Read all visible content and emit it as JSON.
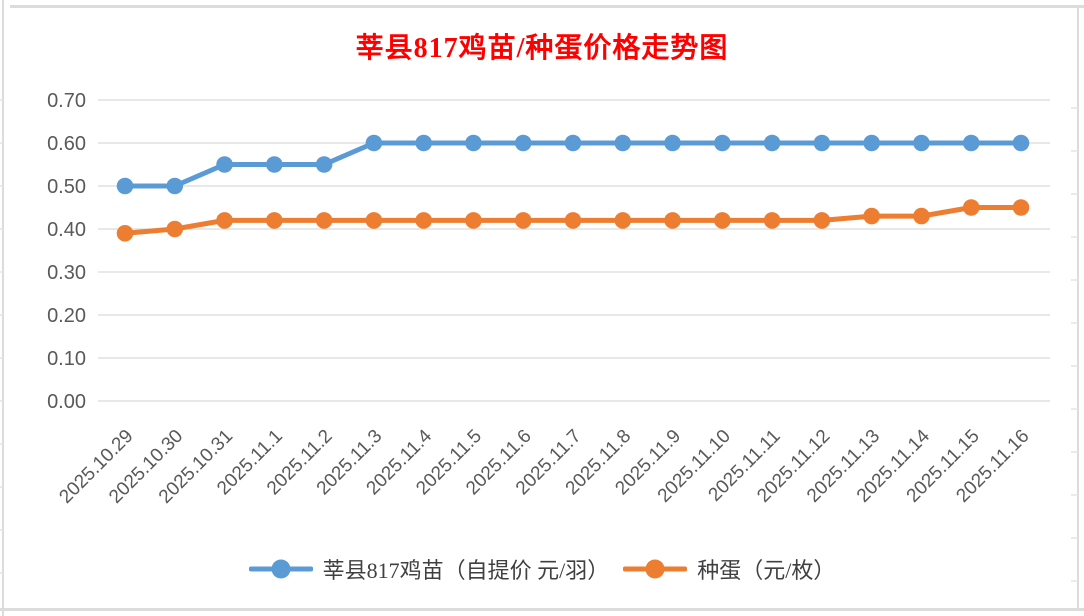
{
  "page": {
    "background": "#FFFFFF",
    "sheet_gridline_color": "#DCDCDC"
  },
  "chart_data": {
    "type": "line",
    "title": "莘县817鸡苗/种蛋价格走势图",
    "title_color": "#FF0000",
    "categories": [
      "2025.10.29",
      "2025.10.30",
      "2025.10.31",
      "2025.11.1",
      "2025.11.2",
      "2025.11.3",
      "2025.11.4",
      "2025.11.5",
      "2025.11.6",
      "2025.11.7",
      "2025.11.8",
      "2025.11.9",
      "2025.11.10",
      "2025.11.11",
      "2025.11.12",
      "2025.11.13",
      "2025.11.14",
      "2025.11.15",
      "2025.11.16"
    ],
    "series": [
      {
        "name": "莘县817鸡苗（自提价 元/羽）",
        "color": "#5B9BD5",
        "values": [
          0.5,
          0.5,
          0.55,
          0.55,
          0.55,
          0.6,
          0.6,
          0.6,
          0.6,
          0.6,
          0.6,
          0.6,
          0.6,
          0.6,
          0.6,
          0.6,
          0.6,
          0.6,
          0.6
        ]
      },
      {
        "name": "种蛋（元/枚）",
        "color": "#ED7D31",
        "values": [
          0.39,
          0.4,
          0.42,
          0.42,
          0.42,
          0.42,
          0.42,
          0.42,
          0.42,
          0.42,
          0.42,
          0.42,
          0.42,
          0.42,
          0.42,
          0.43,
          0.43,
          0.45,
          0.45
        ]
      }
    ],
    "y_ticks": [
      0.0,
      0.1,
      0.2,
      0.3,
      0.4,
      0.5,
      0.6,
      0.7
    ],
    "y_tick_labels": [
      "0.00",
      "0.10",
      "0.20",
      "0.30",
      "0.40",
      "0.50",
      "0.60",
      "0.70"
    ],
    "ylim": [
      0,
      0.7
    ],
    "grid": true,
    "gridline_color": "#D9D9D9",
    "axis_label_color": "#595959",
    "legend_position": "bottom",
    "legend_text_color": "#404040"
  }
}
